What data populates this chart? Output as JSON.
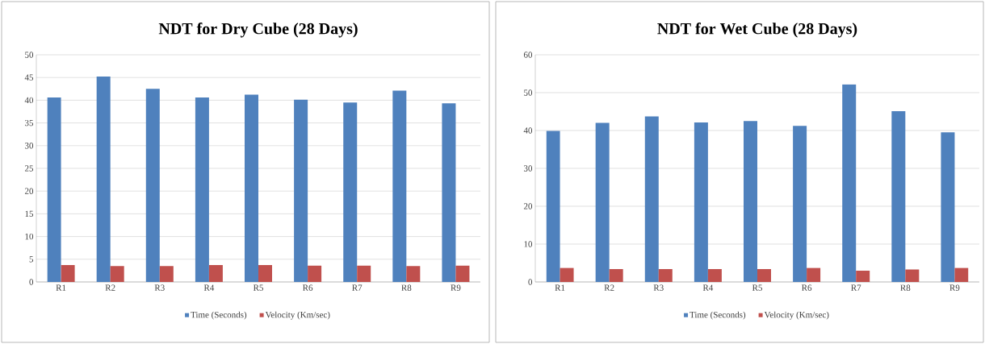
{
  "chart_data": [
    {
      "type": "bar",
      "title": "NDT for Dry Cube (28 Days)",
      "categories": [
        "R1",
        "R2",
        "R3",
        "R4",
        "R5",
        "R6",
        "R7",
        "R8",
        "R9"
      ],
      "series": [
        {
          "name": "Time (Seconds)",
          "color": "#4f81bd",
          "values": [
            40.6,
            45.2,
            42.5,
            40.6,
            41.2,
            40.1,
            39.5,
            42.1,
            39.3
          ]
        },
        {
          "name": "Velocity (Km/sec)",
          "color": "#c0504d",
          "values": [
            3.7,
            3.5,
            3.5,
            3.7,
            3.7,
            3.6,
            3.6,
            3.5,
            3.6
          ]
        }
      ],
      "ylim": [
        0,
        50
      ],
      "yticks": [
        0,
        5,
        10,
        15,
        20,
        25,
        30,
        35,
        40,
        45,
        50
      ],
      "grid": "y",
      "legend": "bottom"
    },
    {
      "type": "bar",
      "title": "NDT for Wet Cube (28 Days)",
      "categories": [
        "R1",
        "R2",
        "R3",
        "R4",
        "R5",
        "R6",
        "R7",
        "R8",
        "R9"
      ],
      "series": [
        {
          "name": "Time (Seconds)",
          "color": "#4f81bd",
          "values": [
            39.9,
            42.0,
            43.7,
            42.1,
            42.5,
            41.2,
            52.2,
            45.1,
            39.5
          ]
        },
        {
          "name": "Velocity (Km/sec)",
          "color": "#c0504d",
          "values": [
            3.7,
            3.4,
            3.4,
            3.4,
            3.4,
            3.7,
            3.0,
            3.3,
            3.7
          ]
        }
      ],
      "ylim": [
        0,
        60
      ],
      "yticks": [
        0,
        10,
        20,
        30,
        40,
        50,
        60
      ],
      "grid": "y",
      "legend": "bottom"
    }
  ]
}
